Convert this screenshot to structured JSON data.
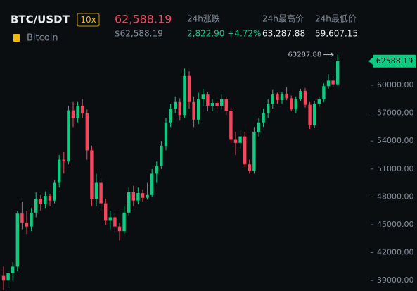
{
  "header": {
    "pair": "BTC/USDT",
    "leverage": "10x",
    "price": "62,588.19",
    "price_usd": "$62,588.19",
    "name": "Bitcoin",
    "stats": [
      {
        "label": "24h涨跌",
        "value": "2,822.90 +4.72%"
      },
      {
        "label": "24h最高价",
        "value": "63,287.88"
      },
      {
        "label": "24h最低价",
        "value": "59,607.15"
      }
    ]
  },
  "chart_data": {
    "type": "candlestick",
    "up_color": "#0ecb81",
    "down_color": "#f6465d",
    "open": [
      39500,
      39000,
      39800,
      40500,
      46200,
      45200,
      44800,
      46300,
      47800,
      47200,
      48100,
      47600,
      49500,
      52000,
      51800,
      57300,
      56500,
      57800,
      57000,
      53000,
      47800,
      49500,
      47300,
      45500,
      45800,
      44800,
      44300,
      46300,
      48500,
      47600,
      48400,
      47900,
      48200,
      50500,
      51300,
      53500,
      56000,
      57500,
      58200,
      56800,
      61000,
      58200,
      56300,
      58500,
      59000,
      57800,
      58100,
      57800,
      58500,
      57200,
      54200,
      53800,
      54500,
      51500,
      50800,
      55000,
      56000,
      57000,
      58000,
      59000,
      58400,
      59100,
      58600,
      57400,
      58500,
      59400,
      57900,
      55700,
      58000,
      58500,
      59900,
      60500,
      60100
    ],
    "high": [
      40500,
      40000,
      41000,
      46500,
      47500,
      46500,
      46800,
      48500,
      48200,
      48600,
      48300,
      49800,
      52500,
      52800,
      57800,
      58200,
      58200,
      58500,
      57400,
      53500,
      50500,
      50000,
      47800,
      46500,
      46300,
      45200,
      47000,
      49000,
      49200,
      49000,
      48800,
      49500,
      51000,
      51800,
      54000,
      56500,
      58000,
      58800,
      58600,
      61800,
      61500,
      58800,
      59200,
      59600,
      59300,
      58500,
      58300,
      59000,
      58800,
      57600,
      55000,
      55200,
      55000,
      52000,
      55500,
      56500,
      57500,
      58500,
      59500,
      59200,
      59300,
      59800,
      58900,
      58800,
      59600,
      59700,
      58200,
      58300,
      58800,
      60200,
      61200,
      61000,
      63287.88
    ],
    "low": [
      38000,
      38200,
      39000,
      40000,
      44500,
      44000,
      44300,
      45800,
      46500,
      46800,
      47000,
      47300,
      49000,
      50500,
      51500,
      55500,
      56000,
      56500,
      52000,
      47000,
      47000,
      46500,
      45000,
      44500,
      44200,
      43300,
      44000,
      46000,
      47000,
      47200,
      47500,
      47700,
      48000,
      49500,
      51000,
      53000,
      55500,
      57000,
      56200,
      56500,
      57500,
      55500,
      55800,
      57800,
      57200,
      57200,
      57500,
      57400,
      56800,
      53800,
      52500,
      53200,
      51200,
      50500,
      50500,
      54500,
      55500,
      56500,
      57500,
      58000,
      58000,
      58400,
      57200,
      57000,
      58300,
      57600,
      55300,
      55400,
      57700,
      58200,
      59600,
      59800,
      59900
    ],
    "close": [
      39000,
      39800,
      40500,
      46200,
      45200,
      44800,
      46300,
      47800,
      47200,
      48100,
      47600,
      49500,
      52000,
      51800,
      57300,
      56500,
      57800,
      57000,
      53000,
      47800,
      49500,
      47300,
      45500,
      45800,
      44800,
      44300,
      46300,
      48500,
      47600,
      48400,
      47900,
      48200,
      50500,
      51300,
      53500,
      56000,
      57500,
      58200,
      56800,
      61000,
      58200,
      56300,
      58500,
      59000,
      57800,
      58100,
      57800,
      58500,
      57200,
      54200,
      53800,
      54500,
      51500,
      50800,
      55000,
      56000,
      57000,
      58000,
      59000,
      58400,
      59100,
      58600,
      57400,
      58500,
      59400,
      57900,
      55700,
      58000,
      58500,
      59900,
      60500,
      60100,
      62588.19
    ],
    "ylim": [
      37880,
      64240
    ],
    "yticks": [
      {
        "value": 39000,
        "label": "39000.00"
      },
      {
        "value": 42000,
        "label": "42000.00"
      },
      {
        "value": 45000,
        "label": "45000.00"
      },
      {
        "value": 48000,
        "label": "48000.00"
      },
      {
        "value": 51000,
        "label": "51000.00"
      },
      {
        "value": 54000,
        "label": "54000.00"
      },
      {
        "value": 57000,
        "label": "57000.00"
      },
      {
        "value": 60000,
        "label": "60000.00"
      }
    ],
    "last_price": 62588.19,
    "high_marker": 63287.88
  }
}
